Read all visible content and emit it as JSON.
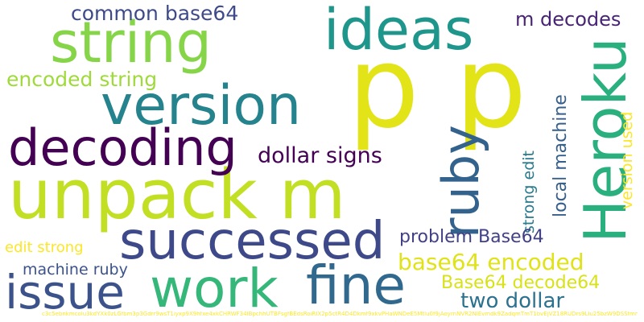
{
  "words": [
    {
      "text": "p p",
      "color": "#e2e418"
    },
    {
      "text": "unpack m",
      "color": "#c2df23"
    },
    {
      "text": "ideas",
      "color": "#1f968b"
    },
    {
      "text": "string",
      "color": "#86d549"
    },
    {
      "text": "version",
      "color": "#25838e"
    },
    {
      "text": "Heroku",
      "color": "#2ab07f"
    },
    {
      "text": "ruby",
      "color": "#33638d"
    },
    {
      "text": "decoding",
      "color": "#440154"
    },
    {
      "text": "successed",
      "color": "#3e4989"
    },
    {
      "text": "work",
      "color": "#35b779"
    },
    {
      "text": "fine",
      "color": "#31688e"
    },
    {
      "text": "issue",
      "color": "#3b528b"
    },
    {
      "text": "common base64",
      "color": "#3e4a89"
    },
    {
      "text": "m decodes",
      "color": "#482475"
    },
    {
      "text": "encoded string",
      "color": "#9fda3a"
    },
    {
      "text": "dollar signs",
      "color": "#440154"
    },
    {
      "text": "local machine",
      "color": "#355f8d"
    },
    {
      "text": "strong edit",
      "color": "#297b8e"
    },
    {
      "text": "version used",
      "color": "#fde725"
    },
    {
      "text": "problem Base64",
      "color": "#424086"
    },
    {
      "text": "base64 encoded",
      "color": "#dfe318"
    },
    {
      "text": "Base64 decode64",
      "color": "#d8e219"
    },
    {
      "text": "two dollar",
      "color": "#2c728e"
    },
    {
      "text": "edit strong",
      "color": "#fde725"
    },
    {
      "text": "machine ruby",
      "color": "#3b528b"
    },
    {
      "text": "c3c5ebnkmcolu3kdYXk0zLGfbm3p3Gdrr9wsT1iyxp9X9hfxe4xkCHRWF34IBpchhUTBFsgfBEdsRoiRIX2p5ctR4D4Dkmf9xkvPHaWNDeE5Mtlu0f9jAoyrnNVR2NIEvmdk9ZadqmTmT1bvEjVZ18RUDrs9LIu25bzW9DSSfmnlwl7Akqkq98zNNScqQmT6LtttDBBFhZbDnr0Il5ZdYljgXdzR7y8bxaqIBUuJGbgyGFzQ4gJNSTX5CWTQJRdqlNY4YUhc",
      "color": "#fde725"
    }
  ]
}
